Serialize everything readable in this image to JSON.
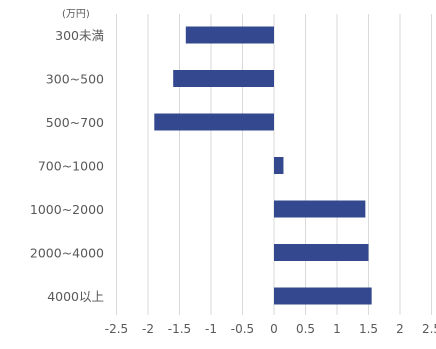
{
  "chart_data": {
    "type": "bar",
    "orientation": "horizontal",
    "unit_label": "(万円)",
    "categories": [
      "300未満",
      "300~500",
      "500~700",
      "700~1000",
      "1000~2000",
      "2000~4000",
      "4000以上"
    ],
    "values": [
      -1.4,
      -1.6,
      -1.9,
      0.15,
      1.45,
      1.5,
      1.55
    ],
    "x_ticks": [
      "-2.5",
      "-2",
      "-1.5",
      "-1",
      "-0.5",
      "0",
      "0.5",
      "1",
      "1.5",
      "2",
      "2.5"
    ],
    "xlim": [
      -2.5,
      2.5
    ],
    "grid": true,
    "legend": "none",
    "bar_color": "#33488f",
    "grid_color": "#d9d9d9"
  }
}
